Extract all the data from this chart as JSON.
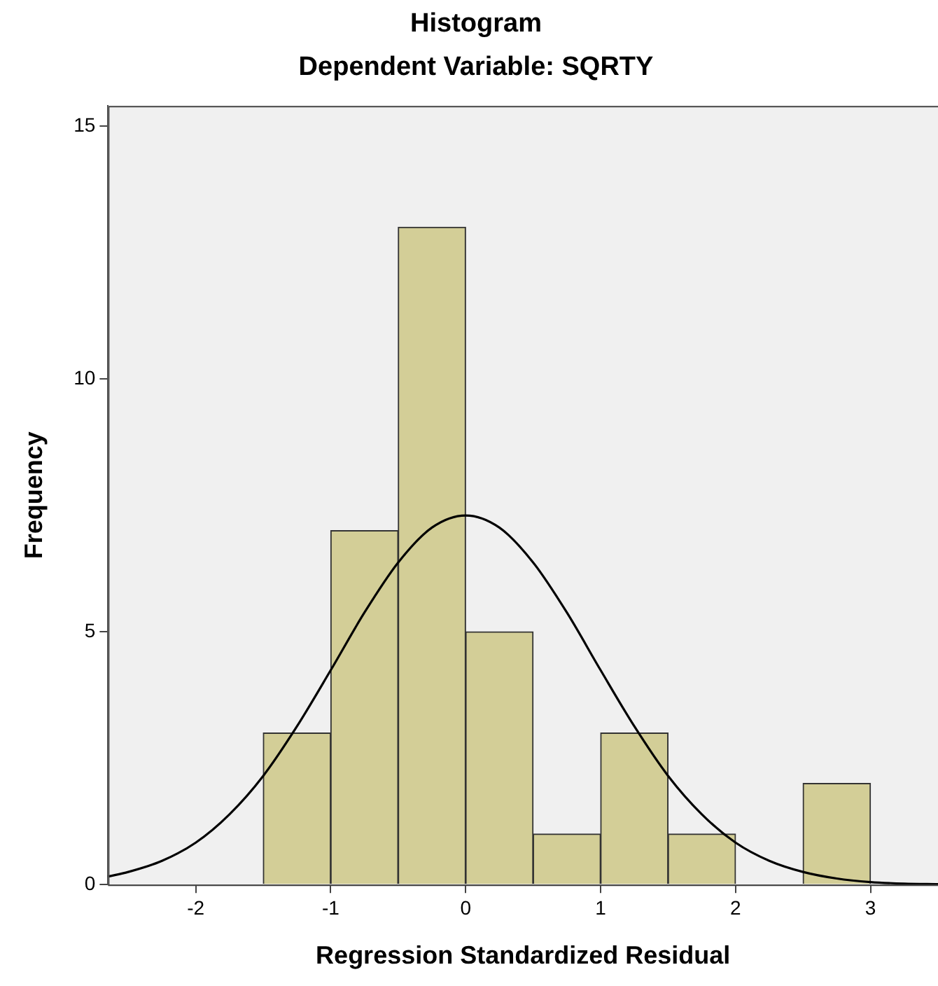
{
  "chart_data": {
    "type": "histogram",
    "title": "Histogram",
    "subtitle": "Dependent Variable: SQRTY",
    "xlabel": "Regression Standardized Residual",
    "ylabel": "Frequency",
    "bins": [
      -1.5,
      -1,
      -0.5,
      0,
      0.5,
      1,
      1.5,
      2,
      2.5,
      3
    ],
    "values": [
      3,
      7,
      13,
      5,
      1,
      3,
      1,
      0,
      2
    ],
    "color": "#d3ce97",
    "series": [
      {
        "type": "line",
        "color": "#000000",
        "x": [
          -2.65,
          -2.5,
          -2.25,
          -2,
          -1.75,
          -1.5,
          -1.25,
          -1,
          -0.75,
          -0.5,
          -0.25,
          0,
          0.25,
          0.5,
          0.75,
          1,
          1.25,
          1.5,
          1.75,
          2,
          2.25,
          2.5,
          2.75,
          3,
          3.25,
          3.5
        ],
        "values": [
          0.16,
          0.25,
          0.47,
          0.83,
          1.39,
          2.15,
          3.13,
          4.24,
          5.38,
          6.37,
          7.06,
          7.3,
          7.06,
          6.37,
          5.38,
          4.24,
          3.13,
          2.15,
          1.39,
          0.83,
          0.47,
          0.25,
          0.12,
          0.05,
          0.02,
          0.01
        ]
      }
    ],
    "xlim": [
      -2.65,
      3.5
    ],
    "ylim": [
      0,
      15.4
    ],
    "xticks": [
      -2,
      -1,
      0,
      1,
      2,
      3
    ],
    "yticks": [
      0,
      5,
      10,
      15
    ],
    "grid": false,
    "legend": false,
    "marker": "none",
    "line_style": "solid"
  }
}
